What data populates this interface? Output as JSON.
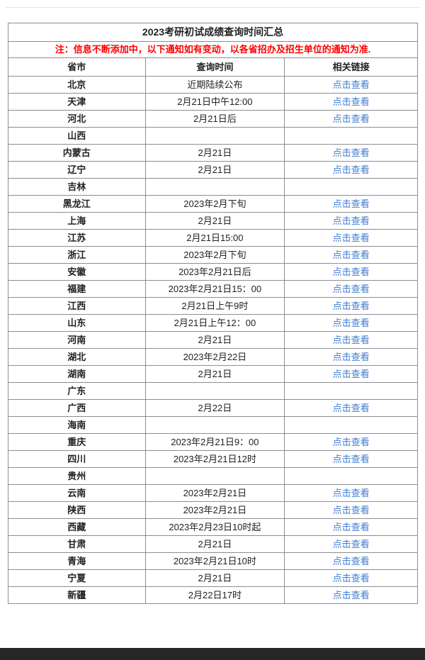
{
  "page": {
    "title": "2023考研初试成绩查询时间汇总",
    "note": "注：信息不断添加中，以下通知如有变动，以各省招办及招生单位的通知为准."
  },
  "table": {
    "headers": [
      "省市",
      "查询时间",
      "相关链接"
    ],
    "link_label": "点击查看",
    "rows": [
      {
        "province": "北京",
        "time": "近期陆续公布",
        "has_link": true
      },
      {
        "province": "天津",
        "time": "2月21日中午12:00",
        "has_link": true
      },
      {
        "province": "河北",
        "time": "2月21日后",
        "has_link": true
      },
      {
        "province": "山西",
        "time": "",
        "has_link": false
      },
      {
        "province": "内蒙古",
        "time": "2月21日",
        "has_link": true
      },
      {
        "province": "辽宁",
        "time": "2月21日",
        "has_link": true
      },
      {
        "province": "吉林",
        "time": "",
        "has_link": false
      },
      {
        "province": "黑龙江",
        "time": "2023年2月下旬",
        "has_link": true
      },
      {
        "province": "上海",
        "time": "2月21日",
        "has_link": true
      },
      {
        "province": "江苏",
        "time": "2月21日15:00",
        "has_link": true
      },
      {
        "province": "浙江",
        "time": "2023年2月下旬",
        "has_link": true
      },
      {
        "province": "安徽",
        "time": "2023年2月21日后",
        "has_link": true
      },
      {
        "province": "福建",
        "time": "2023年2月21日15：00",
        "has_link": true
      },
      {
        "province": "江西",
        "time": "2月21日上午9时",
        "has_link": true
      },
      {
        "province": "山东",
        "time": "2月21日上午12：00",
        "has_link": true
      },
      {
        "province": "河南",
        "time": "2月21日",
        "has_link": true
      },
      {
        "province": "湖北",
        "time": "2023年2月22日",
        "has_link": true
      },
      {
        "province": "湖南",
        "time": "2月21日",
        "has_link": true
      },
      {
        "province": "广东",
        "time": "",
        "has_link": false
      },
      {
        "province": "广西",
        "time": "2月22日",
        "has_link": true
      },
      {
        "province": "海南",
        "time": "",
        "has_link": false
      },
      {
        "province": "重庆",
        "time": "2023年2月21日9：00",
        "has_link": true
      },
      {
        "province": "四川",
        "time": "2023年2月21日12时",
        "has_link": true
      },
      {
        "province": "贵州",
        "time": "",
        "has_link": false
      },
      {
        "province": "云南",
        "time": "2023年2月21日",
        "has_link": true
      },
      {
        "province": "陕西",
        "time": "2023年2月21日",
        "has_link": true
      },
      {
        "province": "西藏",
        "time": "2023年2月23日10时起",
        "has_link": true
      },
      {
        "province": "甘肃",
        "time": "2月21日",
        "has_link": true
      },
      {
        "province": "青海",
        "time": "2023年2月21日10时",
        "has_link": true
      },
      {
        "province": "宁夏",
        "time": "2月21日",
        "has_link": true
      },
      {
        "province": "新疆",
        "time": "2月22日17时",
        "has_link": true
      }
    ]
  },
  "colors": {
    "link": "#3e7cd2",
    "note": "#fe0000",
    "table_border": "#8e8e8e",
    "top_rule": "#e3e3e3",
    "footer_bar": "#262626"
  }
}
